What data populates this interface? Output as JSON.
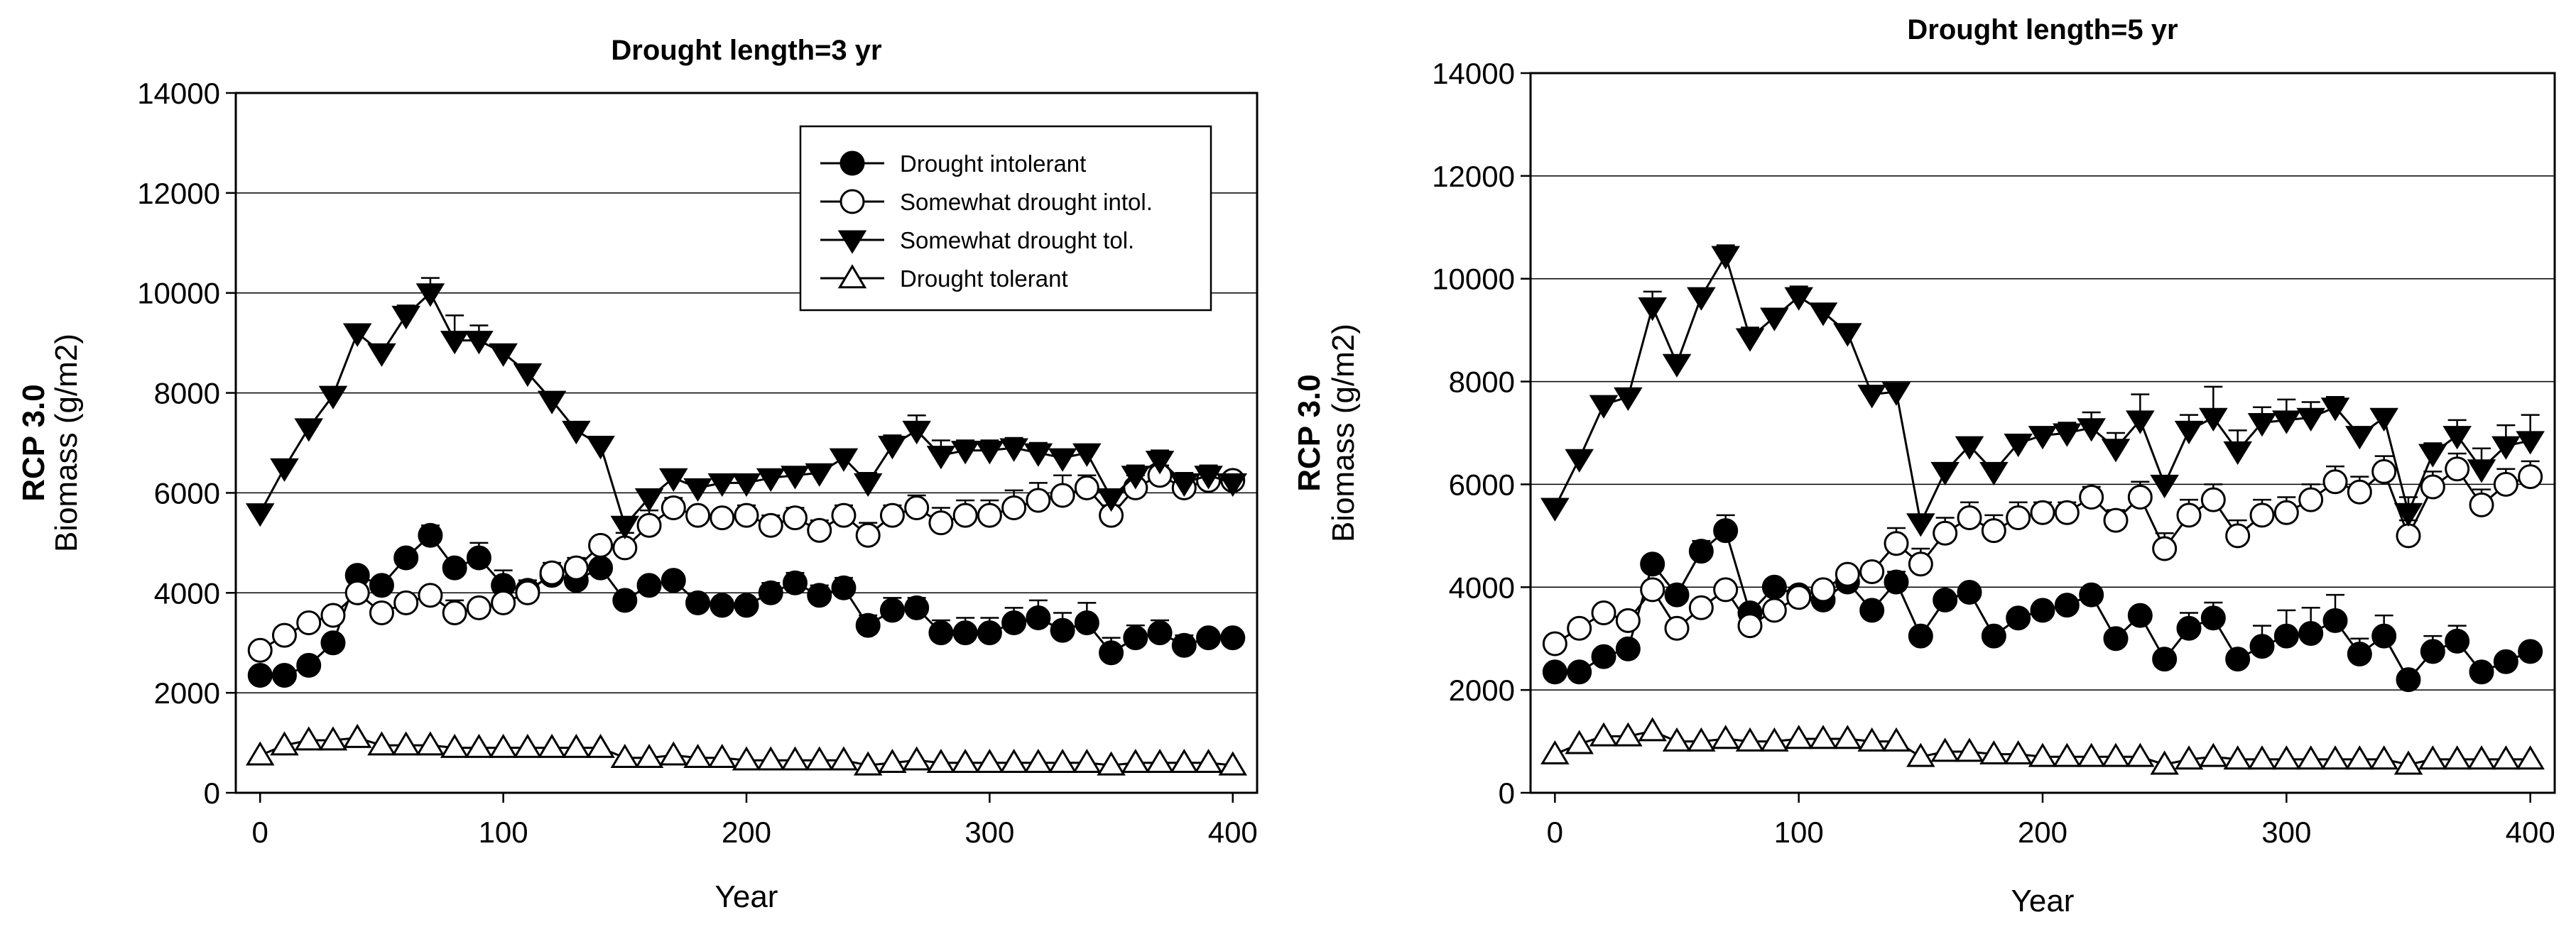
{
  "chart_data": [
    {
      "type": "line",
      "title": "Drought length=3 yr",
      "xlabel": "Year",
      "ylabel_line1": "RCP 3.0",
      "ylabel_line2": "Biomass (g/m2)",
      "xlim": [
        -10,
        410
      ],
      "ylim": [
        0,
        14000
      ],
      "xticks": [
        0,
        100,
        200,
        300,
        400
      ],
      "yticks": [
        0,
        2000,
        4000,
        6000,
        8000,
        10000,
        12000,
        14000
      ],
      "x": [
        0,
        10,
        20,
        30,
        40,
        50,
        60,
        70,
        80,
        90,
        100,
        110,
        120,
        130,
        140,
        150,
        160,
        170,
        180,
        190,
        200,
        210,
        220,
        230,
        240,
        250,
        260,
        270,
        280,
        290,
        300,
        310,
        320,
        330,
        340,
        350,
        360,
        370,
        380,
        390,
        400
      ],
      "legend": true,
      "legend_position": "top-right",
      "series": [
        {
          "name": "Drought intolerant",
          "marker": "circle-filled",
          "values": [
            2350,
            2350,
            2550,
            3000,
            4350,
            4150,
            4700,
            5150,
            4500,
            4700,
            4150,
            4050,
            4350,
            4250,
            4500,
            3850,
            4150,
            4250,
            3800,
            3750,
            3750,
            4000,
            4200,
            3950,
            4100,
            3350,
            3650,
            3700,
            3200,
            3200,
            3200,
            3400,
            3500,
            3250,
            3400,
            2800,
            3100,
            3200,
            2950,
            3100,
            3100
          ],
          "errors": [
            0,
            0,
            0,
            0,
            0,
            0,
            100,
            200,
            0,
            300,
            300,
            0,
            0,
            150,
            150,
            0,
            0,
            0,
            0,
            0,
            0,
            200,
            200,
            200,
            200,
            200,
            250,
            200,
            250,
            300,
            300,
            300,
            350,
            350,
            400,
            300,
            250,
            250,
            200,
            0,
            0
          ]
        },
        {
          "name": "Somewhat drought intol.",
          "marker": "circle-open",
          "values": [
            2850,
            3150,
            3400,
            3550,
            4000,
            3600,
            3800,
            3950,
            3600,
            3700,
            3800,
            4000,
            4400,
            4500,
            4950,
            4900,
            5350,
            5700,
            5550,
            5500,
            5550,
            5350,
            5500,
            5250,
            5550,
            5150,
            5550,
            5700,
            5400,
            5550,
            5550,
            5700,
            5850,
            5950,
            6100,
            5550,
            6100,
            6350,
            6100,
            6250,
            6250
          ],
          "errors": [
            0,
            0,
            0,
            0,
            0,
            0,
            0,
            0,
            250,
            0,
            250,
            250,
            200,
            200,
            0,
            300,
            300,
            200,
            150,
            150,
            200,
            200,
            200,
            200,
            200,
            250,
            200,
            250,
            300,
            300,
            300,
            350,
            350,
            400,
            250,
            200,
            250,
            200,
            200,
            150,
            150
          ]
        },
        {
          "name": "Somewhat drought tol.",
          "marker": "triangle-down-filled",
          "values": [
            5600,
            6500,
            7300,
            7950,
            9200,
            8800,
            9550,
            10000,
            9050,
            9050,
            8800,
            8400,
            7850,
            7250,
            6950,
            5350,
            5900,
            6300,
            6100,
            6200,
            6200,
            6300,
            6350,
            6400,
            6700,
            6200,
            6950,
            7250,
            6750,
            6850,
            6850,
            6900,
            6800,
            6700,
            6800,
            5900,
            6350,
            6650,
            6200,
            6350,
            6200
          ],
          "errors": [
            0,
            0,
            0,
            0,
            0,
            0,
            200,
            300,
            500,
            300,
            0,
            0,
            0,
            0,
            0,
            0,
            0,
            0,
            0,
            0,
            0,
            0,
            0,
            0,
            0,
            200,
            200,
            300,
            300,
            200,
            200,
            200,
            200,
            0,
            0,
            0,
            200,
            200,
            200,
            200,
            150
          ]
        },
        {
          "name": "Drought tolerant",
          "marker": "triangle-up-open",
          "values": [
            750,
            950,
            1050,
            1050,
            1100,
            950,
            950,
            950,
            900,
            900,
            900,
            900,
            900,
            900,
            900,
            700,
            700,
            750,
            700,
            700,
            650,
            650,
            650,
            650,
            650,
            550,
            600,
            650,
            600,
            600,
            600,
            600,
            600,
            600,
            600,
            550,
            600,
            600,
            600,
            600,
            550
          ],
          "errors": [
            0,
            0,
            0,
            0,
            0,
            0,
            0,
            0,
            0,
            0,
            0,
            0,
            0,
            0,
            0,
            0,
            0,
            0,
            0,
            0,
            0,
            0,
            0,
            0,
            0,
            0,
            0,
            0,
            0,
            0,
            0,
            0,
            0,
            0,
            0,
            0,
            0,
            0,
            0,
            0,
            0
          ]
        }
      ]
    },
    {
      "type": "line",
      "title": "Drought length=5 yr",
      "xlabel": "Year",
      "ylabel_line1": "RCP 3.0",
      "ylabel_line2": "Biomass (g/m2)",
      "xlim": [
        -10,
        410
      ],
      "ylim": [
        0,
        14000
      ],
      "xticks": [
        0,
        100,
        200,
        300,
        400
      ],
      "yticks": [
        0,
        2000,
        4000,
        6000,
        8000,
        10000,
        12000,
        14000
      ],
      "x": [
        0,
        10,
        20,
        30,
        40,
        50,
        60,
        70,
        80,
        90,
        100,
        110,
        120,
        130,
        140,
        150,
        160,
        170,
        180,
        190,
        200,
        210,
        220,
        230,
        240,
        250,
        260,
        270,
        280,
        290,
        300,
        310,
        320,
        330,
        340,
        350,
        360,
        370,
        380,
        390,
        400
      ],
      "legend": false,
      "series": [
        {
          "name": "Drought intolerant",
          "marker": "circle-filled",
          "values": [
            2350,
            2350,
            2650,
            2800,
            4450,
            3850,
            4700,
            5100,
            3500,
            4000,
            3850,
            3750,
            4100,
            3550,
            4100,
            3050,
            3750,
            3900,
            3050,
            3400,
            3550,
            3650,
            3850,
            3000,
            3450,
            2600,
            3200,
            3400,
            2600,
            2850,
            3050,
            3100,
            3350,
            2700,
            3050,
            2200,
            2750,
            2950,
            2350,
            2550,
            2750
          ],
          "errors": [
            0,
            0,
            0,
            0,
            0,
            0,
            200,
            300,
            0,
            0,
            0,
            0,
            0,
            0,
            200,
            0,
            0,
            0,
            0,
            0,
            0,
            0,
            0,
            0,
            0,
            0,
            300,
            300,
            0,
            400,
            500,
            500,
            500,
            300,
            400,
            0,
            300,
            300,
            0,
            0,
            0
          ]
        },
        {
          "name": "Somewhat drought intol.",
          "marker": "circle-open",
          "values": [
            2900,
            3200,
            3500,
            3350,
            3950,
            3200,
            3600,
            3950,
            3250,
            3550,
            3800,
            3950,
            4250,
            4300,
            4850,
            4450,
            5050,
            5350,
            5100,
            5350,
            5450,
            5450,
            5750,
            5300,
            5750,
            4750,
            5400,
            5700,
            5000,
            5400,
            5450,
            5700,
            6050,
            5850,
            6250,
            5000,
            5950,
            6300,
            5600,
            6000,
            6150
          ],
          "errors": [
            0,
            0,
            0,
            0,
            0,
            0,
            0,
            0,
            0,
            0,
            0,
            0,
            0,
            0,
            300,
            300,
            300,
            300,
            300,
            300,
            200,
            200,
            200,
            200,
            300,
            300,
            300,
            300,
            300,
            300,
            300,
            300,
            300,
            300,
            300,
            300,
            300,
            300,
            300,
            300,
            300
          ]
        },
        {
          "name": "Somewhat drought tol.",
          "marker": "triangle-down-filled",
          "values": [
            5550,
            6500,
            7550,
            7700,
            9450,
            8350,
            9650,
            10450,
            8850,
            9250,
            9650,
            9350,
            8950,
            7750,
            7800,
            5250,
            6250,
            6750,
            6250,
            6800,
            6950,
            7000,
            7100,
            6700,
            7250,
            6000,
            7050,
            7300,
            6650,
            7200,
            7250,
            7300,
            7500,
            6950,
            7300,
            5450,
            6600,
            6950,
            6300,
            6750,
            6850
          ],
          "errors": [
            0,
            0,
            0,
            0,
            300,
            0,
            0,
            200,
            200,
            0,
            200,
            0,
            0,
            0,
            0,
            0,
            0,
            0,
            0,
            0,
            0,
            200,
            300,
            300,
            500,
            0,
            300,
            600,
            400,
            300,
            400,
            300,
            200,
            0,
            0,
            300,
            200,
            300,
            400,
            400,
            500
          ]
        },
        {
          "name": "Drought tolerant",
          "marker": "triangle-up-open",
          "values": [
            750,
            950,
            1100,
            1100,
            1200,
            1000,
            1000,
            1050,
            1000,
            1000,
            1050,
            1050,
            1050,
            1000,
            1000,
            700,
            800,
            800,
            750,
            750,
            700,
            700,
            700,
            700,
            700,
            550,
            650,
            700,
            650,
            650,
            650,
            650,
            650,
            650,
            650,
            550,
            650,
            650,
            650,
            650,
            650
          ],
          "errors": [
            0,
            0,
            0,
            0,
            0,
            0,
            0,
            0,
            0,
            0,
            0,
            0,
            0,
            0,
            0,
            0,
            0,
            0,
            0,
            0,
            0,
            0,
            0,
            0,
            0,
            0,
            0,
            0,
            0,
            0,
            0,
            0,
            0,
            0,
            0,
            0,
            0,
            0,
            0,
            0,
            0
          ]
        }
      ]
    }
  ]
}
